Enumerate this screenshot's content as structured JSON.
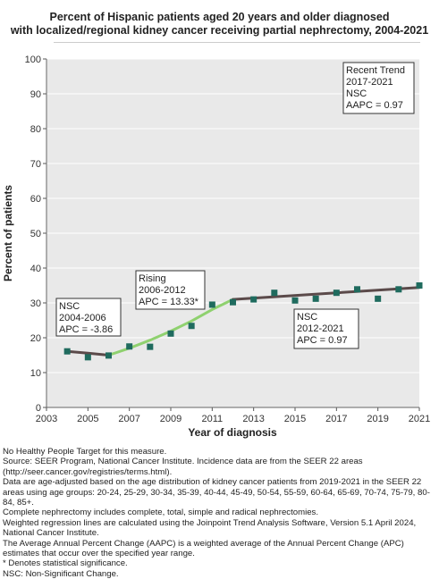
{
  "title_line1": "Percent of Hispanic patients aged 20 years and older diagnosed",
  "title_line2": "with localized/regional kidney cancer receiving partial nephrectomy, 2004-2021",
  "chart_data": {
    "type": "scatter",
    "xlabel": "Year of diagnosis",
    "ylabel": "Percent of patients",
    "xlim": [
      2003,
      2021
    ],
    "ylim": [
      0,
      100
    ],
    "xticks": [
      2003,
      2005,
      2007,
      2009,
      2011,
      2013,
      2015,
      2017,
      2019,
      2021
    ],
    "yticks": [
      0,
      10,
      20,
      30,
      40,
      50,
      60,
      70,
      80,
      90,
      100
    ],
    "grid": true,
    "observed": {
      "x": [
        2004,
        2005,
        2006,
        2007,
        2008,
        2009,
        2010,
        2011,
        2012,
        2013,
        2014,
        2015,
        2016,
        2017,
        2018,
        2019,
        2020,
        2021
      ],
      "y": [
        16.1,
        14.4,
        14.9,
        17.5,
        17.4,
        21.2,
        23.4,
        29.5,
        30.2,
        31.0,
        32.9,
        30.7,
        31.2,
        32.9,
        33.9,
        31.2,
        33.9,
        35.0
      ]
    },
    "trend_segments": [
      {
        "x": [
          2004,
          2005,
          2006
        ],
        "y": [
          16.1,
          15.6,
          15.0
        ],
        "color": "#5b4a4a"
      },
      {
        "x": [
          2006,
          2007,
          2008,
          2009,
          2010,
          2011,
          2012
        ],
        "y": [
          15.0,
          17.0,
          19.3,
          21.9,
          24.8,
          28.1,
          31.0
        ],
        "color": "#8fd16f"
      },
      {
        "x": [
          2012,
          2021
        ],
        "y": [
          31.0,
          34.4
        ],
        "color": "#5b4a4a"
      }
    ],
    "annotations": [
      {
        "lines": [
          "NSC",
          "2004-2006",
          "APC = -3.86"
        ]
      },
      {
        "lines": [
          "Rising",
          "2006-2012",
          "APC = 13.33*"
        ]
      },
      {
        "lines": [
          "NSC",
          "2012-2021",
          "APC =  0.97"
        ]
      },
      {
        "lines": [
          "Recent Trend",
          "2017-2021",
          "NSC",
          "AAPC =  0.97"
        ]
      }
    ],
    "marker_color": "#1f6b5e"
  },
  "footnotes": [
    "No Healthy People Target for this measure.",
    "Source: SEER Program, National Cancer Institute. Incidence data are from the SEER 22 areas (http://seer.cancer.gov/registries/terms.html).",
    "Data are age-adjusted based on the age distribution of kidney cancer patients from 2019-2021 in the SEER 22 areas using age groups: 20-24, 25-29, 30-34, 35-39, 40-44, 45-49, 50-54, 55-59, 60-64, 65-69, 70-74, 75-79, 80-84, 85+.",
    "Complete nephrectomy includes complete, total, simple and radical nephrectomies.",
    "Weighted regression lines are calculated using the Joinpoint Trend Analysis Software, Version 5.1 April 2024, National Cancer Institute.",
    "The Average Annual Percent Change (AAPC) is a weighted average of the Annual Percent Change (APC) estimates that occur over the specified year range.",
    "* Denotes statistical significance.",
    "NSC: Non-Significant Change."
  ]
}
